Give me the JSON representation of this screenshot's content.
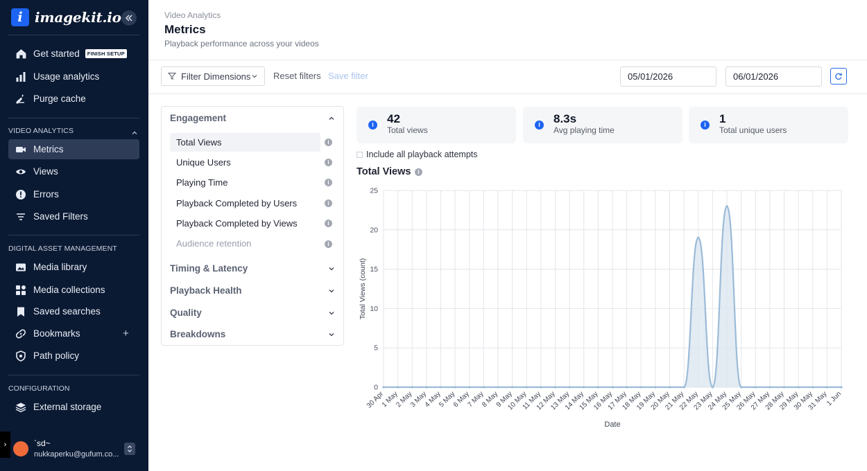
{
  "brand": {
    "mark": "i",
    "name": "imagekit.io"
  },
  "sidebar": {
    "top_items": [
      {
        "label": "Get started",
        "badge": "FINISH SETUP"
      },
      {
        "label": "Usage analytics"
      },
      {
        "label": "Purge cache"
      }
    ],
    "video_section": "VIDEO ANALYTICS",
    "video_items": [
      {
        "label": "Metrics",
        "active": true
      },
      {
        "label": "Views"
      },
      {
        "label": "Errors"
      },
      {
        "label": "Saved Filters"
      }
    ],
    "dam_section": "DIGITAL ASSET MANAGEMENT",
    "dam_items": [
      {
        "label": "Media library"
      },
      {
        "label": "Media collections"
      },
      {
        "label": "Saved searches"
      },
      {
        "label": "Bookmarks"
      },
      {
        "label": "Path policy"
      }
    ],
    "config_section": "CONFIGURATION",
    "config_items": [
      {
        "label": "External storage"
      }
    ],
    "user": {
      "name": "`sd~",
      "email": "nukkaperku@gufum.co..."
    }
  },
  "header": {
    "breadcrumb": "Video Analytics",
    "title": "Metrics",
    "subtitle": "Playback performance across your videos"
  },
  "toolbar": {
    "filter_label": "Filter Dimensions",
    "reset_label": "Reset filters",
    "save_label": "Save filter",
    "start_date": "05/01/2026",
    "end_date": "06/01/2026"
  },
  "panel": {
    "sections": [
      {
        "label": "Engagement",
        "expanded": true
      },
      {
        "label": "Timing & Latency"
      },
      {
        "label": "Playback Health"
      },
      {
        "label": "Quality"
      },
      {
        "label": "Breakdowns"
      }
    ],
    "metrics": [
      {
        "label": "Total Views",
        "active": true
      },
      {
        "label": "Unique Users"
      },
      {
        "label": "Playing Time"
      },
      {
        "label": "Playback Completed by Users"
      },
      {
        "label": "Playback Completed by Views"
      },
      {
        "label": "Audience retention",
        "disabled": true
      }
    ]
  },
  "stats": [
    {
      "value": "42",
      "label": "Total views"
    },
    {
      "value": "8.3s",
      "label": "Avg playing time"
    },
    {
      "value": "1",
      "label": "Total unique users"
    }
  ],
  "checkbox_label": "Include all playback attempts",
  "chart_title": "Total Views",
  "colors": {
    "sidebar": "#0b1a33",
    "accent": "#1d64f2",
    "series": "#9bbbd8",
    "fill": "#dce6f0"
  },
  "chart_data": {
    "type": "area",
    "xlabel": "Date",
    "ylabel": "Total Views (count)",
    "ylim": [
      0,
      25
    ],
    "yticks": [
      0,
      5,
      10,
      15,
      20,
      25
    ],
    "grid": true,
    "categories": [
      "30 Apr",
      "1 May",
      "2 May",
      "3 May",
      "4 May",
      "5 May",
      "6 May",
      "7 May",
      "8 May",
      "9 May",
      "10 May",
      "11 May",
      "12 May",
      "13 May",
      "14 May",
      "15 May",
      "16 May",
      "17 May",
      "18 May",
      "19 May",
      "20 May",
      "21 May",
      "22 May",
      "23 May",
      "24 May",
      "25 May",
      "26 May",
      "27 May",
      "28 May",
      "29 May",
      "30 May",
      "31 May",
      "1 Jun"
    ],
    "series": [
      {
        "values": [
          0,
          0,
          0,
          0,
          0,
          0,
          0,
          0,
          0,
          0,
          0,
          0,
          0,
          0,
          0,
          0,
          0,
          0,
          0,
          0,
          0,
          0,
          19,
          0,
          23,
          0,
          0,
          0,
          0,
          0,
          0,
          0,
          0
        ]
      }
    ]
  }
}
